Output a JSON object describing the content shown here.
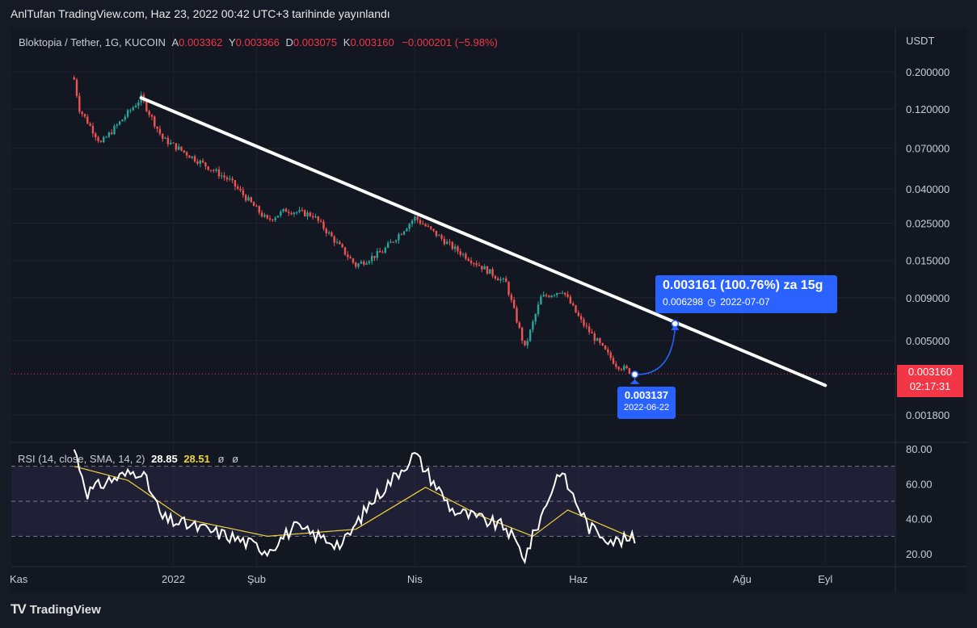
{
  "header": {
    "publish_text": "AnlTufan TradingView.com, Haz 23, 2022 00:42 UTC+3 tarihinde yayınlandı"
  },
  "legend": {
    "symbol": "Bloktopia / Tether, 1G, KUCOIN",
    "open_label": "A",
    "open": "0.003362",
    "high_label": "Y",
    "high": "0.003366",
    "low_label": "D",
    "low": "0.003075",
    "close_label": "K",
    "close": "0.003160",
    "change": "−0.000201 (−5.98%)"
  },
  "rsi_legend": {
    "label": "RSI (14, close, SMA, 14, 2)",
    "rsi_value": "28.85",
    "sma_value": "28.51",
    "extra1": "ø",
    "extra2": "ø"
  },
  "projection": {
    "line1": "0.003161 (100.76%) za 15g",
    "line2_price": "0.006298",
    "line2_date": "2022-07-07"
  },
  "low_marker": {
    "price": "0.003137",
    "date": "2022-06-22"
  },
  "price_tag": {
    "price": "0.003160",
    "countdown": "02:17:31"
  },
  "footer": {
    "brand": "TradingView",
    "logo": "TV"
  },
  "colors": {
    "up": "#26a69a",
    "down": "#ef5350",
    "trendline": "#ffffff",
    "rsi_line": "#ffffff",
    "rsi_sma": "#f0d43c",
    "callout": "#2962ff",
    "price_tag": "#f23645"
  },
  "chart_data": {
    "type": "candlestick",
    "scale": "log",
    "quote_currency": "USDT",
    "y_ticks": [
      "0.200000",
      "0.120000",
      "0.070000",
      "0.040000",
      "0.025000",
      "0.015000",
      "0.009000",
      "0.005000",
      "0.001800"
    ],
    "x_ticks": [
      "Kas",
      "2022",
      "Şub",
      "Nis",
      "Haz",
      "Ağu",
      "Eyl"
    ],
    "close_anchors": [
      {
        "date": "2021-11-25",
        "price": 0.18
      },
      {
        "date": "2021-11-27",
        "price": 0.12
      },
      {
        "date": "2021-12-05",
        "price": 0.075
      },
      {
        "date": "2021-12-12",
        "price": 0.1
      },
      {
        "date": "2021-12-20",
        "price": 0.14
      },
      {
        "date": "2021-12-28",
        "price": 0.08
      },
      {
        "date": "2022-01-08",
        "price": 0.062
      },
      {
        "date": "2022-01-22",
        "price": 0.045
      },
      {
        "date": "2022-02-05",
        "price": 0.026
      },
      {
        "date": "2022-02-12",
        "price": 0.03
      },
      {
        "date": "2022-02-22",
        "price": 0.028
      },
      {
        "date": "2022-03-10",
        "price": 0.014
      },
      {
        "date": "2022-03-20",
        "price": 0.017
      },
      {
        "date": "2022-04-01",
        "price": 0.027
      },
      {
        "date": "2022-04-15",
        "price": 0.018
      },
      {
        "date": "2022-05-05",
        "price": 0.011
      },
      {
        "date": "2022-05-12",
        "price": 0.0045
      },
      {
        "date": "2022-05-18",
        "price": 0.009
      },
      {
        "date": "2022-05-26",
        "price": 0.01
      },
      {
        "date": "2022-06-02",
        "price": 0.0065
      },
      {
        "date": "2022-06-10",
        "price": 0.0045
      },
      {
        "date": "2022-06-15",
        "price": 0.0036
      },
      {
        "date": "2022-06-22",
        "price": 0.00316
      }
    ],
    "trendline": [
      {
        "date": "2021-12-20",
        "price": 0.14
      },
      {
        "date": "2022-09-01",
        "price": 0.0027
      }
    ],
    "projection": {
      "from_date": "2022-06-22",
      "from_price": 0.003137,
      "to_date": "2022-07-07",
      "to_price": 0.006298
    },
    "current_price": 0.00316,
    "rsi": {
      "levels": [
        70,
        50,
        30
      ],
      "y_ticks": [
        "80.00",
        "60.00",
        "40.00",
        "20.00"
      ],
      "anchors": [
        {
          "date": "2021-11-25",
          "rsi": 80
        },
        {
          "date": "2021-11-30",
          "rsi": 55
        },
        {
          "date": "2021-12-08",
          "rsi": 62
        },
        {
          "date": "2021-12-20",
          "rsi": 68
        },
        {
          "date": "2021-12-28",
          "rsi": 40
        },
        {
          "date": "2022-01-10",
          "rsi": 35
        },
        {
          "date": "2022-01-22",
          "rsi": 30
        },
        {
          "date": "2022-02-05",
          "rsi": 22
        },
        {
          "date": "2022-02-15",
          "rsi": 35
        },
        {
          "date": "2022-03-05",
          "rsi": 25
        },
        {
          "date": "2022-03-15",
          "rsi": 48
        },
        {
          "date": "2022-04-01",
          "rsi": 77
        },
        {
          "date": "2022-04-15",
          "rsi": 45
        },
        {
          "date": "2022-05-05",
          "rsi": 35
        },
        {
          "date": "2022-05-12",
          "rsi": 18
        },
        {
          "date": "2022-05-25",
          "rsi": 68
        },
        {
          "date": "2022-06-05",
          "rsi": 35
        },
        {
          "date": "2022-06-15",
          "rsi": 27
        },
        {
          "date": "2022-06-22",
          "rsi": 28.85
        }
      ],
      "sma_anchors": [
        {
          "date": "2021-11-25",
          "rsi": 70
        },
        {
          "date": "2021-12-15",
          "rsi": 62
        },
        {
          "date": "2022-01-05",
          "rsi": 40
        },
        {
          "date": "2022-02-05",
          "rsi": 30
        },
        {
          "date": "2022-03-10",
          "rsi": 34
        },
        {
          "date": "2022-04-05",
          "rsi": 58
        },
        {
          "date": "2022-04-25",
          "rsi": 42
        },
        {
          "date": "2022-05-15",
          "rsi": 30
        },
        {
          "date": "2022-05-28",
          "rsi": 45
        },
        {
          "date": "2022-06-22",
          "rsi": 28.51
        }
      ]
    }
  }
}
